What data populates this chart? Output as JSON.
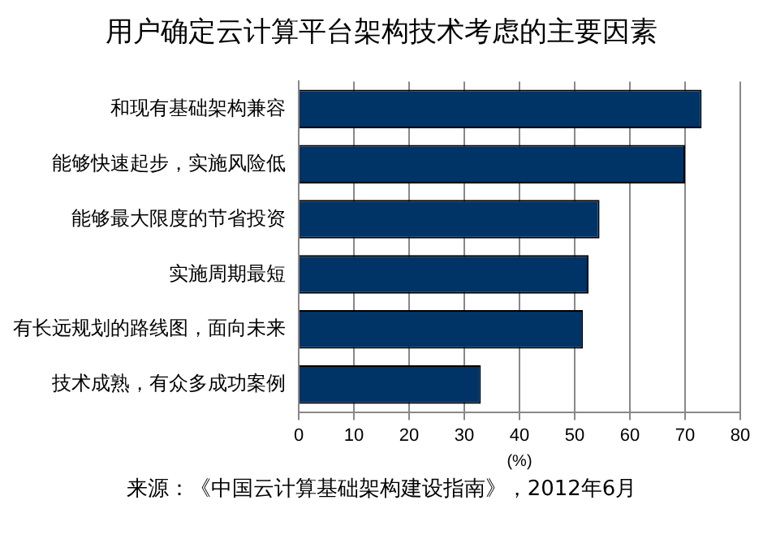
{
  "chart_data": {
    "type": "bar",
    "orientation": "horizontal",
    "title": "用户确定云计算平台架构技术考虑的主要因素",
    "categories": [
      "和现有基础架构兼容",
      "能够快速起步，实施风险低",
      "能够最大限度的节省投资",
      "实施周期最短",
      "有长远规划的路线图，面向未来",
      "技术成熟，有众多成功案例"
    ],
    "values": [
      73,
      70,
      54.5,
      52.5,
      51.5,
      33
    ],
    "color": "#003366",
    "xlabel": "(%)",
    "xlim": [
      0,
      80
    ],
    "xticks": [
      0,
      10,
      20,
      30,
      40,
      50,
      60,
      70,
      80
    ],
    "grid": "x",
    "legend": false,
    "annotations": [
      "来源：《中国云计算基础架构建设指南》，2012年6月"
    ]
  }
}
